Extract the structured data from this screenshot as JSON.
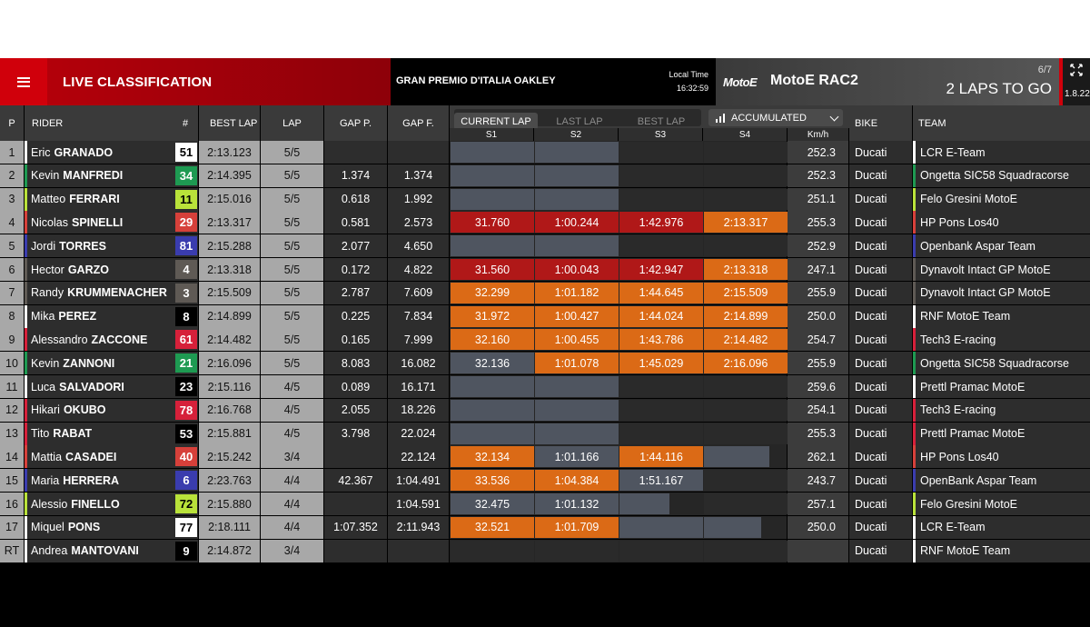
{
  "header": {
    "title": "LIVE CLASSIFICATION",
    "event": "GRAN PREMIO D'ITALIA OAKLEY",
    "local_time_label": "Local Time",
    "local_time": "16:32:59",
    "brand_logo": "MotoE",
    "race": "MotoE RAC2",
    "lap_count": "6/7",
    "laps_to_go": "2 LAPS TO GO",
    "version": "1.8.22"
  },
  "columns": {
    "p": "P",
    "rider": "RIDER",
    "num": "#",
    "best_lap": "BEST LAP",
    "lap": "LAP",
    "gap_p": "GAP P.",
    "gap_f": "GAP F.",
    "bike": "BIKE",
    "team": "TEAM",
    "speed": "Km/h",
    "s1": "S1",
    "s2": "S2",
    "s3": "S3",
    "s4": "S4"
  },
  "lap_tabs": {
    "current": "CURRENT LAP",
    "last": "LAST LAP",
    "best": "BEST LAP",
    "selected": "CURRENT LAP"
  },
  "view_select": {
    "label": "ACCUMULATED"
  },
  "colors": {
    "red": "#b01818",
    "orange": "#db6a16",
    "grey": "#4f5560",
    "brand": "#d0000b"
  },
  "rows": [
    {
      "p": "1",
      "first": "Eric",
      "last": "GRANADO",
      "num": "51",
      "num_bg": "#ffffff",
      "num_fg": "#000000",
      "best": "2:13.123",
      "lap": "5/5",
      "gap_p": "",
      "gap_f": "",
      "s": [
        [
          "grey",
          1
        ],
        [
          "grey",
          1
        ],
        [
          "empty",
          0
        ],
        [
          "empty",
          0
        ]
      ],
      "speed": "252.3",
      "bike": "Ducati",
      "team": "LCR E-Team",
      "team_color": "#ffffff"
    },
    {
      "p": "2",
      "first": "Kevin",
      "last": "MANFREDI",
      "num": "34",
      "num_bg": "#1e9a52",
      "num_fg": "#ffffff",
      "best": "2:14.395",
      "lap": "5/5",
      "gap_p": "1.374",
      "gap_f": "1.374",
      "s": [
        [
          "grey",
          1
        ],
        [
          "grey",
          1
        ],
        [
          "empty",
          0
        ],
        [
          "empty",
          0
        ]
      ],
      "speed": "252.3",
      "bike": "Ducati",
      "team": "Ongetta SIC58 Squadracorse",
      "team_color": "#1e9a52"
    },
    {
      "p": "3",
      "first": "Matteo",
      "last": "FERRARI",
      "num": "11",
      "num_bg": "#b9e23a",
      "num_fg": "#000000",
      "best": "2:15.016",
      "lap": "5/5",
      "gap_p": "0.618",
      "gap_f": "1.992",
      "s": [
        [
          "grey",
          1
        ],
        [
          "grey",
          1
        ],
        [
          "empty",
          0
        ],
        [
          "empty",
          0
        ]
      ],
      "speed": "251.1",
      "bike": "Ducati",
      "team": "Felo Gresini MotoE",
      "team_color": "#b9e23a"
    },
    {
      "p": "4",
      "first": "Nicolas",
      "last": "SPINELLI",
      "num": "29",
      "num_bg": "#d6403a",
      "num_fg": "#ffffff",
      "best": "2:13.317",
      "lap": "5/5",
      "gap_p": "0.581",
      "gap_f": "2.573",
      "s": [
        [
          "red",
          1,
          "31.760"
        ],
        [
          "red",
          1,
          "1:00.244"
        ],
        [
          "red",
          1,
          "1:42.976"
        ],
        [
          "orange",
          1,
          "2:13.317"
        ]
      ],
      "speed": "255.3",
      "bike": "Ducati",
      "team": "HP Pons Los40",
      "team_color": "#d6403a"
    },
    {
      "p": "5",
      "first": "Jordi",
      "last": "TORRES",
      "num": "81",
      "num_bg": "#3a3cae",
      "num_fg": "#ffffff",
      "best": "2:15.288",
      "lap": "5/5",
      "gap_p": "2.077",
      "gap_f": "4.650",
      "s": [
        [
          "grey",
          1
        ],
        [
          "grey",
          1
        ],
        [
          "empty",
          0
        ],
        [
          "empty",
          0
        ]
      ],
      "speed": "252.9",
      "bike": "Ducati",
      "team": "Openbank Aspar Team",
      "team_color": "#3a3cae"
    },
    {
      "p": "6",
      "first": "Hector",
      "last": "GARZO",
      "num": "4",
      "num_bg": "#5f5a55",
      "num_fg": "#ffffff",
      "best": "2:13.318",
      "lap": "5/5",
      "gap_p": "0.172",
      "gap_f": "4.822",
      "s": [
        [
          "red",
          1,
          "31.560"
        ],
        [
          "red",
          1,
          "1:00.043"
        ],
        [
          "red",
          1,
          "1:42.947"
        ],
        [
          "orange",
          1,
          "2:13.318"
        ]
      ],
      "speed": "247.1",
      "bike": "Ducati",
      "team": "Dynavolt Intact GP MotoE",
      "team_color": "#5f5a55"
    },
    {
      "p": "7",
      "first": "Randy",
      "last": "KRUMMENACHER",
      "num": "3",
      "num_bg": "#5f5a55",
      "num_fg": "#ffffff",
      "best": "2:15.509",
      "lap": "5/5",
      "gap_p": "2.787",
      "gap_f": "7.609",
      "s": [
        [
          "orange",
          1,
          "32.299"
        ],
        [
          "orange",
          1,
          "1:01.182"
        ],
        [
          "orange",
          1,
          "1:44.645"
        ],
        [
          "orange",
          1,
          "2:15.509"
        ]
      ],
      "speed": "255.9",
      "bike": "Ducati",
      "team": "Dynavolt Intact GP MotoE",
      "team_color": "#5f5a55"
    },
    {
      "p": "8",
      "first": "Mika",
      "last": "PEREZ",
      "num": "8",
      "num_bg": "#000000",
      "num_fg": "#ffffff",
      "best": "2:14.899",
      "lap": "5/5",
      "gap_p": "0.225",
      "gap_f": "7.834",
      "s": [
        [
          "orange",
          1,
          "31.972"
        ],
        [
          "orange",
          1,
          "1:00.427"
        ],
        [
          "orange",
          1,
          "1:44.024"
        ],
        [
          "orange",
          1,
          "2:14.899"
        ]
      ],
      "speed": "250.0",
      "bike": "Ducati",
      "team": "RNF MotoE Team",
      "team_color": "#ffffff"
    },
    {
      "p": "9",
      "first": "Alessandro",
      "last": "ZACCONE",
      "num": "61",
      "num_bg": "#d6203a",
      "num_fg": "#ffffff",
      "best": "2:14.482",
      "lap": "5/5",
      "gap_p": "0.165",
      "gap_f": "7.999",
      "s": [
        [
          "orange",
          1,
          "32.160"
        ],
        [
          "orange",
          1,
          "1:00.455"
        ],
        [
          "orange",
          1,
          "1:43.786"
        ],
        [
          "orange",
          1,
          "2:14.482"
        ]
      ],
      "speed": "254.7",
      "bike": "Ducati",
      "team": "Tech3 E-racing",
      "team_color": "#d6203a"
    },
    {
      "p": "10",
      "first": "Kevin",
      "last": "ZANNONI",
      "num": "21",
      "num_bg": "#1e9a52",
      "num_fg": "#ffffff",
      "best": "2:16.096",
      "lap": "5/5",
      "gap_p": "8.083",
      "gap_f": "16.082",
      "s": [
        [
          "grey",
          1,
          "32.136"
        ],
        [
          "orange",
          1,
          "1:01.078"
        ],
        [
          "orange",
          1,
          "1:45.029"
        ],
        [
          "orange",
          1,
          "2:16.096"
        ]
      ],
      "speed": "255.9",
      "bike": "Ducati",
      "team": "Ongetta SIC58 Squadracorse",
      "team_color": "#1e9a52"
    },
    {
      "p": "11",
      "first": "Luca",
      "last": "SALVADORI",
      "num": "23",
      "num_bg": "#000000",
      "num_fg": "#ffffff",
      "best": "2:15.116",
      "lap": "4/5",
      "gap_p": "0.089",
      "gap_f": "16.171",
      "s": [
        [
          "grey",
          1
        ],
        [
          "grey",
          1
        ],
        [
          "empty",
          0
        ],
        [
          "empty",
          0
        ]
      ],
      "speed": "259.6",
      "bike": "Ducati",
      "team": "Prettl Pramac MotoE",
      "team_color": "#ffffff"
    },
    {
      "p": "12",
      "first": "Hikari",
      "last": "OKUBO",
      "num": "78",
      "num_bg": "#d6203a",
      "num_fg": "#ffffff",
      "best": "2:16.768",
      "lap": "4/5",
      "gap_p": "2.055",
      "gap_f": "18.226",
      "s": [
        [
          "grey",
          1
        ],
        [
          "grey",
          1
        ],
        [
          "empty",
          0
        ],
        [
          "empty",
          0
        ]
      ],
      "speed": "254.1",
      "bike": "Ducati",
      "team": "Tech3 E-racing",
      "team_color": "#d6203a"
    },
    {
      "p": "13",
      "first": "Tito",
      "last": "RABAT",
      "num": "53",
      "num_bg": "#000000",
      "num_fg": "#ffffff",
      "best": "2:15.881",
      "lap": "4/5",
      "gap_p": "3.798",
      "gap_f": "22.024",
      "s": [
        [
          "grey",
          1
        ],
        [
          "grey",
          1
        ],
        [
          "empty",
          0
        ],
        [
          "empty",
          0
        ]
      ],
      "speed": "255.3",
      "bike": "Ducati",
      "team": "Prettl Pramac MotoE",
      "team_color": "#d6203a"
    },
    {
      "p": "14",
      "first": "Mattia",
      "last": "CASADEI",
      "num": "40",
      "num_bg": "#d6403a",
      "num_fg": "#ffffff",
      "best": "2:15.242",
      "lap": "3/4",
      "gap_p": "",
      "gap_f": "22.124",
      "s": [
        [
          "orange",
          1,
          "32.134"
        ],
        [
          "grey",
          1,
          "1:01.166"
        ],
        [
          "orange",
          1,
          "1:44.116"
        ],
        [
          "grey",
          0.78
        ]
      ],
      "speed": "262.1",
      "bike": "Ducati",
      "team": "HP Pons Los40",
      "team_color": "#d6403a"
    },
    {
      "p": "15",
      "first": "Maria",
      "last": "HERRERA",
      "num": "6",
      "num_bg": "#3a3cae",
      "num_fg": "#ffffff",
      "best": "2:23.763",
      "lap": "4/4",
      "gap_p": "42.367",
      "gap_f": "1:04.491",
      "s": [
        [
          "orange",
          1,
          "33.536"
        ],
        [
          "orange",
          1,
          "1:04.384"
        ],
        [
          "grey",
          1,
          "1:51.167"
        ],
        [
          "empty",
          0
        ]
      ],
      "speed": "243.7",
      "bike": "Ducati",
      "team": "OpenBank Aspar Team",
      "team_color": "#3a3cae"
    },
    {
      "p": "16",
      "first": "Alessio",
      "last": "FINELLO",
      "num": "72",
      "num_bg": "#b9e23a",
      "num_fg": "#000000",
      "best": "2:15.880",
      "lap": "4/4",
      "gap_p": "",
      "gap_f": "1:04.591",
      "s": [
        [
          "grey",
          1,
          "32.475"
        ],
        [
          "grey",
          1,
          "1:01.132"
        ],
        [
          "grey",
          0.6
        ],
        [
          "empty",
          0
        ]
      ],
      "speed": "257.1",
      "bike": "Ducati",
      "team": "Felo Gresini MotoE",
      "team_color": "#b9e23a"
    },
    {
      "p": "17",
      "first": "Miquel",
      "last": "PONS",
      "num": "77",
      "num_bg": "#ffffff",
      "num_fg": "#000000",
      "best": "2:18.111",
      "lap": "4/4",
      "gap_p": "1:07.352",
      "gap_f": "2:11.943",
      "s": [
        [
          "orange",
          1,
          "32.521"
        ],
        [
          "orange",
          1,
          "1:01.709"
        ],
        [
          "grey",
          1
        ],
        [
          "grey",
          0.68
        ]
      ],
      "speed": "250.0",
      "bike": "Ducati",
      "team": "LCR E-Team",
      "team_color": "#ffffff"
    },
    {
      "p": "RT",
      "first": "Andrea",
      "last": "MANTOVANI",
      "num": "9",
      "num_bg": "#000000",
      "num_fg": "#ffffff",
      "best": "2:14.872",
      "lap": "3/4",
      "gap_p": "",
      "gap_f": "",
      "s": [
        [
          "empty",
          0
        ],
        [
          "empty",
          0
        ],
        [
          "empty",
          0
        ],
        [
          "empty",
          0
        ]
      ],
      "speed": "",
      "bike": "Ducati",
      "team": "RNF MotoE Team",
      "team_color": "#ffffff"
    }
  ]
}
